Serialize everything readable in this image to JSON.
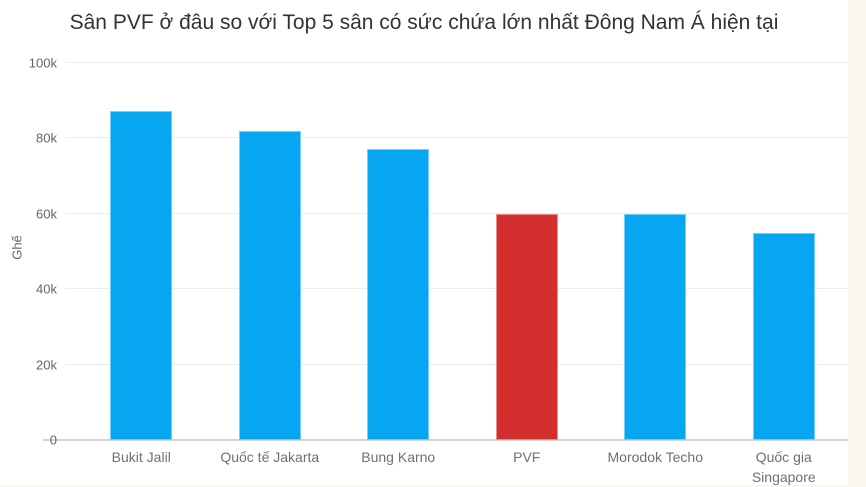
{
  "colors": {
    "page_background": "#faf8ee",
    "card_background": "#ffffff",
    "title_text": "#333333",
    "axis_text": "#666666",
    "x_label_text": "#6a7178",
    "gridline": "#ececec",
    "baseline": "#d4d4d4",
    "bar_default": "#06a7f0",
    "bar_highlight": "#d32f2f"
  },
  "chart_data": {
    "type": "bar",
    "title": "Sân PVF ở đâu so với Top 5 sân có sức chứa lớn nhất Đông Nam Á hiện tại",
    "xlabel": "",
    "ylabel": "Ghế",
    "categories": [
      "Bukit Jalil",
      "Quốc tế Jakarta",
      "Bung Karno",
      "PVF",
      "Morodok Techo",
      "Quốc gia Singapore"
    ],
    "values": [
      87400,
      82000,
      77200,
      60000,
      60000,
      55000
    ],
    "bar_colors": [
      "#06a7f0",
      "#06a7f0",
      "#06a7f0",
      "#d32f2f",
      "#06a7f0",
      "#06a7f0"
    ],
    "highlighted_category": "PVF",
    "ylim": [
      0,
      100000
    ],
    "yticks": [
      {
        "value": 0,
        "label": "0"
      },
      {
        "value": 20000,
        "label": "20k"
      },
      {
        "value": 40000,
        "label": "40k"
      },
      {
        "value": 60000,
        "label": "60k"
      },
      {
        "value": 80000,
        "label": "80k"
      },
      {
        "value": 100000,
        "label": "100k"
      }
    ],
    "grid": true,
    "legend": false,
    "legend_position": "none"
  }
}
